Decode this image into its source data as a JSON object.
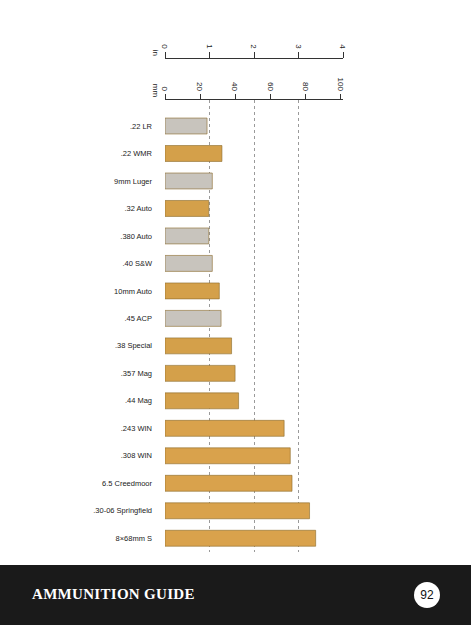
{
  "chart_data": {
    "type": "bar",
    "orientation": "horizontal",
    "categories": [
      ".22 LR",
      ".22 WMR",
      "9mm Luger",
      ".32 Auto",
      ".380 Auto",
      ".40 S&W",
      "10mm Auto",
      ".45 ACP",
      ".38 Special",
      ".357 Mag",
      ".44 Mag",
      ".243 WIN",
      ".308 WIN",
      "6.5 Creedmoor",
      ".30-06 Springfield",
      "8×68mm S"
    ],
    "values": [
      24,
      32.5,
      27,
      25,
      25,
      27,
      31,
      32,
      38,
      40,
      42,
      68,
      71.5,
      72.5,
      82.5,
      86
    ],
    "colors": [
      "#c8c4bd",
      "#d4a04a",
      "#c8c4bd",
      "#d4a04a",
      "#c8c4bd",
      "#c8c4bd",
      "#d4a04a",
      "#c8c4bd",
      "#d4a04a",
      "#d4a04a",
      "#d4a04a",
      "#d9a24c",
      "#d9a24c",
      "#d9a24c",
      "#d9a24c",
      "#d9a24c"
    ],
    "xlabel": "mm",
    "xlim": [
      0,
      101.6
    ],
    "xticks": [
      0,
      20,
      40,
      60,
      80,
      100
    ],
    "x2label": "in",
    "x2lim": [
      0,
      4
    ],
    "x2ticks": [
      0,
      1,
      2,
      3,
      4
    ],
    "grid": true
  },
  "page": {
    "title": "AMMUNITION GUIDE",
    "number": 92
  }
}
